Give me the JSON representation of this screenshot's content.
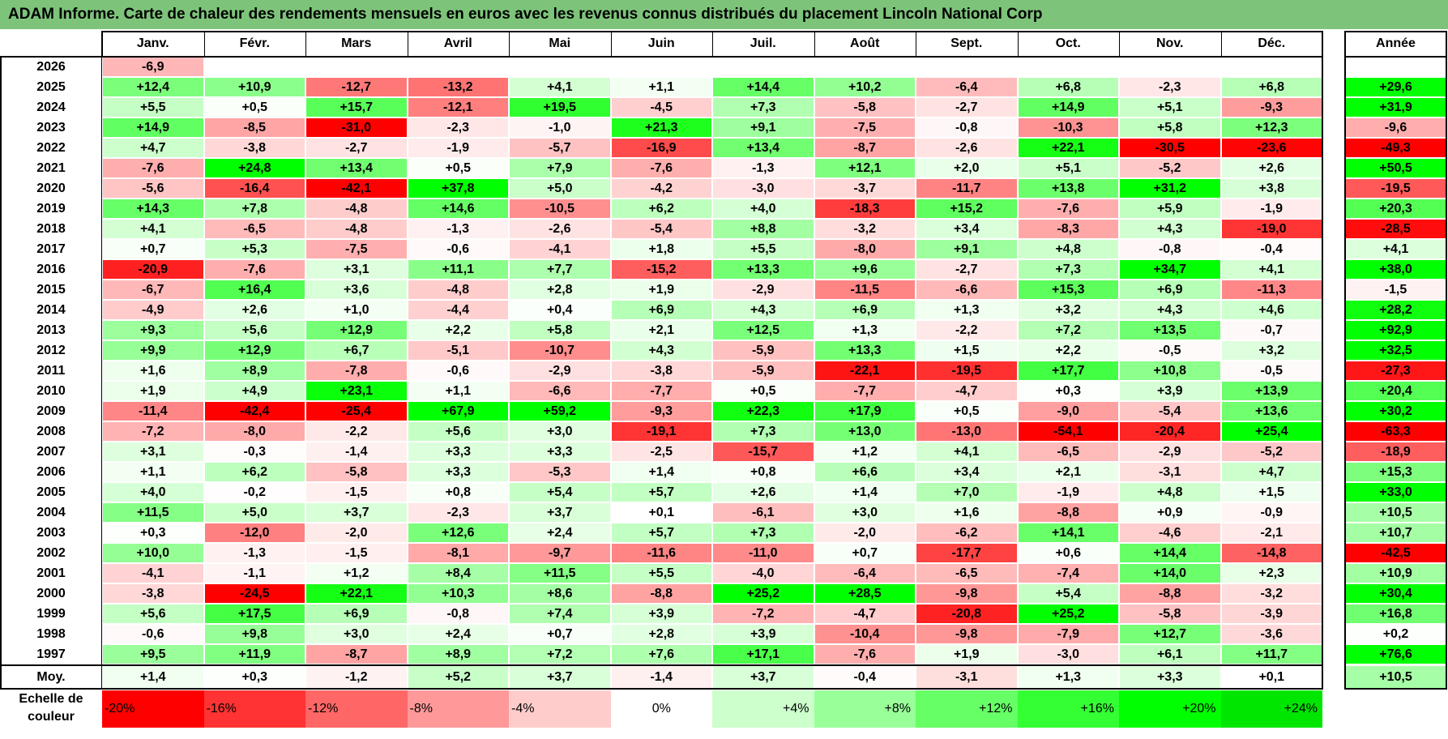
{
  "title": "ADAM Informe. Carte de chaleur des rendements mensuels en euros avec les revenus connus distribués du placement Lincoln National Corp",
  "chart_data": {
    "type": "heatmap",
    "title": "ADAM Informe. Carte de chaleur des rendements mensuels en euros avec les revenus connus distribués du placement Lincoln National Corp",
    "months": [
      "Janv.",
      "Févr.",
      "Mars",
      "Avril",
      "Mai",
      "Juin",
      "Juil.",
      "Août",
      "Sept.",
      "Oct.",
      "Nov.",
      "Déc."
    ],
    "year_column_label": "Année",
    "average_label": "Moy.",
    "rows": [
      {
        "year": "2026",
        "values": [
          "-6,9",
          "",
          "",
          "",
          "",
          "",
          "",
          "",
          "",
          "",
          "",
          ""
        ],
        "annual": ""
      },
      {
        "year": "2025",
        "values": [
          "+12,4",
          "+10,9",
          "-12,7",
          "-13,2",
          "+4,1",
          "+1,1",
          "+14,4",
          "+10,2",
          "-6,4",
          "+6,8",
          "-2,3",
          "+6,8"
        ],
        "annual": "+29,6"
      },
      {
        "year": "2024",
        "values": [
          "+5,5",
          "+0,5",
          "+15,7",
          "-12,1",
          "+19,5",
          "-4,5",
          "+7,3",
          "-5,8",
          "-2,7",
          "+14,9",
          "+5,1",
          "-9,3"
        ],
        "annual": "+31,9"
      },
      {
        "year": "2023",
        "values": [
          "+14,9",
          "-8,5",
          "-31,0",
          "-2,3",
          "-1,0",
          "+21,3",
          "+9,1",
          "-7,5",
          "-0,8",
          "-10,3",
          "+5,8",
          "+12,3"
        ],
        "annual": "-9,6"
      },
      {
        "year": "2022",
        "values": [
          "+4,7",
          "-3,8",
          "-2,7",
          "-1,9",
          "-5,7",
          "-16,9",
          "+13,4",
          "-8,7",
          "-2,6",
          "+22,1",
          "-30,5",
          "-23,6"
        ],
        "annual": "-49,3"
      },
      {
        "year": "2021",
        "values": [
          "-7,6",
          "+24,8",
          "+13,4",
          "+0,5",
          "+7,9",
          "-7,6",
          "-1,3",
          "+12,1",
          "+2,0",
          "+5,1",
          "-5,2",
          "+2,6"
        ],
        "annual": "+50,5"
      },
      {
        "year": "2020",
        "values": [
          "-5,6",
          "-16,4",
          "-42,1",
          "+37,8",
          "+5,0",
          "-4,2",
          "-3,0",
          "-3,7",
          "-11,7",
          "+13,8",
          "+31,2",
          "+3,8"
        ],
        "annual": "-19,5"
      },
      {
        "year": "2019",
        "values": [
          "+14,3",
          "+7,8",
          "-4,8",
          "+14,6",
          "-10,5",
          "+6,2",
          "+4,0",
          "-18,3",
          "+15,2",
          "-7,6",
          "+5,9",
          "-1,9"
        ],
        "annual": "+20,3"
      },
      {
        "year": "2018",
        "values": [
          "+4,1",
          "-6,5",
          "-4,8",
          "-1,3",
          "-2,6",
          "-5,4",
          "+8,8",
          "-3,2",
          "+3,4",
          "-8,3",
          "+4,3",
          "-19,0"
        ],
        "annual": "-28,5"
      },
      {
        "year": "2017",
        "values": [
          "+0,7",
          "+5,3",
          "-7,5",
          "-0,6",
          "-4,1",
          "+1,8",
          "+5,5",
          "-8,0",
          "+9,1",
          "+4,8",
          "-0,8",
          "-0,4"
        ],
        "annual": "+4,1"
      },
      {
        "year": "2016",
        "values": [
          "-20,9",
          "-7,6",
          "+3,1",
          "+11,1",
          "+7,7",
          "-15,2",
          "+13,3",
          "+9,6",
          "-2,7",
          "+7,3",
          "+34,7",
          "+4,1"
        ],
        "annual": "+38,0"
      },
      {
        "year": "2015",
        "values": [
          "-6,7",
          "+16,4",
          "+3,6",
          "-4,8",
          "+2,8",
          "+1,9",
          "-2,9",
          "-11,5",
          "-6,6",
          "+15,3",
          "+6,9",
          "-11,3"
        ],
        "annual": "-1,5"
      },
      {
        "year": "2014",
        "values": [
          "-4,9",
          "+2,6",
          "+1,0",
          "-4,4",
          "+0,4",
          "+6,9",
          "+4,3",
          "+6,9",
          "+1,3",
          "+3,2",
          "+4,3",
          "+4,6"
        ],
        "annual": "+28,2"
      },
      {
        "year": "2013",
        "values": [
          "+9,3",
          "+5,6",
          "+12,9",
          "+2,2",
          "+5,8",
          "+2,1",
          "+12,5",
          "+1,3",
          "-2,2",
          "+7,2",
          "+13,5",
          "-0,7"
        ],
        "annual": "+92,9"
      },
      {
        "year": "2012",
        "values": [
          "+9,9",
          "+12,9",
          "+6,7",
          "-5,1",
          "-10,7",
          "+4,3",
          "-5,9",
          "+13,3",
          "+1,5",
          "+2,2",
          "-0,5",
          "+3,2"
        ],
        "annual": "+32,5"
      },
      {
        "year": "2011",
        "values": [
          "+1,6",
          "+8,9",
          "-7,8",
          "-0,6",
          "-2,9",
          "-3,8",
          "-5,9",
          "-22,1",
          "-19,5",
          "+17,7",
          "+10,8",
          "-0,5"
        ],
        "annual": "-27,3"
      },
      {
        "year": "2010",
        "values": [
          "+1,9",
          "+4,9",
          "+23,1",
          "+1,1",
          "-6,6",
          "-7,7",
          "+0,5",
          "-7,7",
          "-4,7",
          "+0,3",
          "+3,9",
          "+13,9"
        ],
        "annual": "+20,4"
      },
      {
        "year": "2009",
        "values": [
          "-11,4",
          "-42,4",
          "-25,4",
          "+67,9",
          "+59,2",
          "-9,3",
          "+22,3",
          "+17,9",
          "+0,5",
          "-9,0",
          "-5,4",
          "+13,6"
        ],
        "annual": "+30,2"
      },
      {
        "year": "2008",
        "values": [
          "-7,2",
          "-8,0",
          "-2,2",
          "+5,6",
          "+3,0",
          "-19,1",
          "+7,3",
          "+13,0",
          "-13,0",
          "-54,1",
          "-20,4",
          "+25,4"
        ],
        "annual": "-63,3"
      },
      {
        "year": "2007",
        "values": [
          "+3,1",
          "-0,3",
          "-1,4",
          "+3,3",
          "+3,3",
          "-2,5",
          "-15,7",
          "+1,2",
          "+4,1",
          "-6,5",
          "-2,9",
          "-5,2"
        ],
        "annual": "-18,9"
      },
      {
        "year": "2006",
        "values": [
          "+1,1",
          "+6,2",
          "-5,8",
          "+3,3",
          "-5,3",
          "+1,4",
          "+0,8",
          "+6,6",
          "+3,4",
          "+2,1",
          "-3,1",
          "+4,7"
        ],
        "annual": "+15,3"
      },
      {
        "year": "2005",
        "values": [
          "+4,0",
          "-0,2",
          "-1,5",
          "+0,8",
          "+5,4",
          "+5,7",
          "+2,6",
          "+1,4",
          "+7,0",
          "-1,9",
          "+4,8",
          "+1,5"
        ],
        "annual": "+33,0"
      },
      {
        "year": "2004",
        "values": [
          "+11,5",
          "+5,0",
          "+3,7",
          "-2,3",
          "+3,7",
          "+0,1",
          "-6,1",
          "+3,0",
          "+1,6",
          "-8,8",
          "+0,9",
          "-0,9"
        ],
        "annual": "+10,5"
      },
      {
        "year": "2003",
        "values": [
          "+0,3",
          "-12,0",
          "-2,0",
          "+12,6",
          "+2,4",
          "+5,7",
          "+7,3",
          "-2,0",
          "-6,2",
          "+14,1",
          "-4,6",
          "-2,1"
        ],
        "annual": "+10,7"
      },
      {
        "year": "2002",
        "values": [
          "+10,0",
          "-1,3",
          "-1,5",
          "-8,1",
          "-9,7",
          "-11,6",
          "-11,0",
          "+0,7",
          "-17,7",
          "+0,6",
          "+14,4",
          "-14,8"
        ],
        "annual": "-42,5"
      },
      {
        "year": "2001",
        "values": [
          "-4,1",
          "-1,1",
          "+1,2",
          "+8,4",
          "+11,5",
          "+5,5",
          "-4,0",
          "-6,4",
          "-6,5",
          "-7,4",
          "+14,0",
          "+2,3"
        ],
        "annual": "+10,9"
      },
      {
        "year": "2000",
        "values": [
          "-3,8",
          "-24,5",
          "+22,1",
          "+10,3",
          "+8,6",
          "-8,8",
          "+25,2",
          "+28,5",
          "-9,8",
          "+5,4",
          "-8,8",
          "-3,2"
        ],
        "annual": "+30,4"
      },
      {
        "year": "1999",
        "values": [
          "+5,6",
          "+17,5",
          "+6,9",
          "-0,8",
          "+7,4",
          "+3,9",
          "-7,2",
          "-4,7",
          "-20,8",
          "+25,2",
          "-5,8",
          "-3,9"
        ],
        "annual": "+16,8"
      },
      {
        "year": "1998",
        "values": [
          "-0,6",
          "+9,8",
          "+3,0",
          "+2,4",
          "+0,7",
          "+2,8",
          "+3,9",
          "-10,4",
          "-9,8",
          "-7,9",
          "+12,7",
          "-3,6"
        ],
        "annual": "+0,2"
      },
      {
        "year": "1997",
        "values": [
          "+9,5",
          "+11,9",
          "-8,7",
          "+8,9",
          "+7,2",
          "+7,6",
          "+17,1",
          "-7,6",
          "+1,9",
          "-3,0",
          "+6,1",
          "+11,7"
        ],
        "annual": "+76,6"
      }
    ],
    "average": {
      "values": [
        "+1,4",
        "+0,3",
        "-1,2",
        "+5,2",
        "+3,7",
        "-1,4",
        "+3,7",
        "-0,4",
        "-3,1",
        "+1,3",
        "+3,3",
        "+0,1"
      ],
      "annual": "+10,5"
    },
    "scale_label": "Echelle de couleur",
    "scale": [
      {
        "label": "-20%",
        "value": -20,
        "color": "#ff0000"
      },
      {
        "label": "-16%",
        "value": -16,
        "color": "#ff3333"
      },
      {
        "label": "-12%",
        "value": -12,
        "color": "#ff6666"
      },
      {
        "label": "-8%",
        "value": -8,
        "color": "#ff9999"
      },
      {
        "label": "-4%",
        "value": -4,
        "color": "#ffcccc"
      },
      {
        "label": "0%",
        "value": 0,
        "color": "#ffffff"
      },
      {
        "label": "+4%",
        "value": 4,
        "color": "#ccffcc"
      },
      {
        "label": "+8%",
        "value": 8,
        "color": "#99ff99"
      },
      {
        "label": "+12%",
        "value": 12,
        "color": "#66ff66"
      },
      {
        "label": "+16%",
        "value": 16,
        "color": "#33ff33"
      },
      {
        "label": "+20%",
        "value": 20,
        "color": "#00ff00"
      },
      {
        "label": "+24%",
        "value": 24,
        "color": "#00e600"
      }
    ],
    "annual_scale_max": 30
  }
}
